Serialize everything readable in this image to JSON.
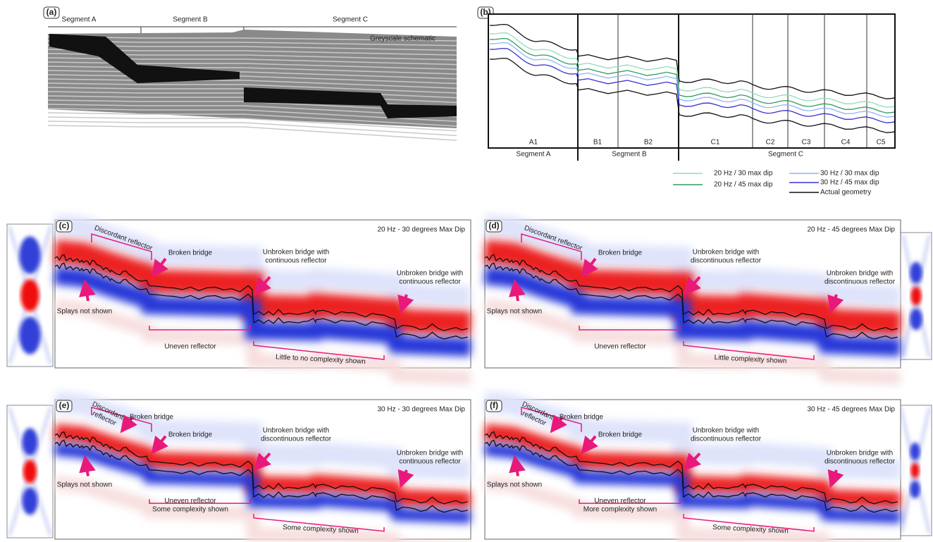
{
  "panel_a": {
    "label": "(a)",
    "segments": [
      "Segment A",
      "Segment B",
      "Segment C"
    ],
    "caption": "Greyscale schematic"
  },
  "panel_b": {
    "label": "(b)",
    "subsegments": [
      "A1",
      "B1",
      "B2",
      "C1",
      "C2",
      "C3",
      "C4",
      "C5"
    ],
    "segments": [
      "Segment A",
      "Segment B",
      "Segment C"
    ],
    "legend": [
      {
        "name": "20 Hz / 30 max dip",
        "color": "#8fdcc0"
      },
      {
        "name": "20 Hz / 45 max dip",
        "color": "#2f9e5a"
      },
      {
        "name": "30 Hz / 30 max dip",
        "color": "#8fb4ff"
      },
      {
        "name": "30 Hz / 45 max dip",
        "color": "#3a2fd0"
      },
      {
        "name": "Actual geometry",
        "color": "#111111"
      }
    ]
  },
  "panels": [
    {
      "label": "(c)",
      "title": "20 Hz - 30 degrees Max Dip",
      "annotations": [
        [
          "Discordant reflector"
        ],
        [
          "Broken bridge"
        ],
        [
          "Unbroken bridge with",
          "continuous reflector"
        ],
        [
          "Unbroken bridge with",
          "continuous reflector"
        ],
        [
          "Splays not shown"
        ],
        [
          "Uneven reflector"
        ],
        [
          "Little to no complexity shown"
        ]
      ]
    },
    {
      "label": "(d)",
      "title": "20 Hz - 45 degrees Max Dip",
      "annotations": [
        [
          "Discordant reflector"
        ],
        [
          "Broken bridge"
        ],
        [
          "Unbroken bridge with",
          "discontinuous reflector"
        ],
        [
          "Unbroken bridge with",
          "discontinuous reflector"
        ],
        [
          "Splays not shown"
        ],
        [
          "Uneven reflector"
        ],
        [
          "Little complexity shown"
        ]
      ]
    },
    {
      "label": "(e)",
      "title": "30 Hz - 30 degrees Max Dip",
      "annotations": [
        [
          "Discordant",
          "reflector"
        ],
        [
          "Broken bridge"
        ],
        [
          "Broken bridge"
        ],
        [
          "Unbroken bridge with",
          "discontinuous reflector"
        ],
        [
          "Unbroken bridge with",
          "continuous reflector"
        ],
        [
          "Splays not shown"
        ],
        [
          "Uneven reflector",
          "Some complexity shown"
        ],
        [
          "Some complexity shown"
        ]
      ]
    },
    {
      "label": "(f)",
      "title": "30 Hz - 45 degrees Max Dip",
      "annotations": [
        [
          "Discordant",
          "reflector"
        ],
        [
          "Broken bridge"
        ],
        [
          "Broken bridge"
        ],
        [
          "Unbroken bridge with",
          "discontinuous reflector"
        ],
        [
          "Unbroken bridge with",
          "discontinuous reflector"
        ],
        [
          "Splays not shown"
        ],
        [
          "Uneven reflector",
          "More complexity shown"
        ],
        [
          "Some complexity shown"
        ]
      ]
    }
  ]
}
